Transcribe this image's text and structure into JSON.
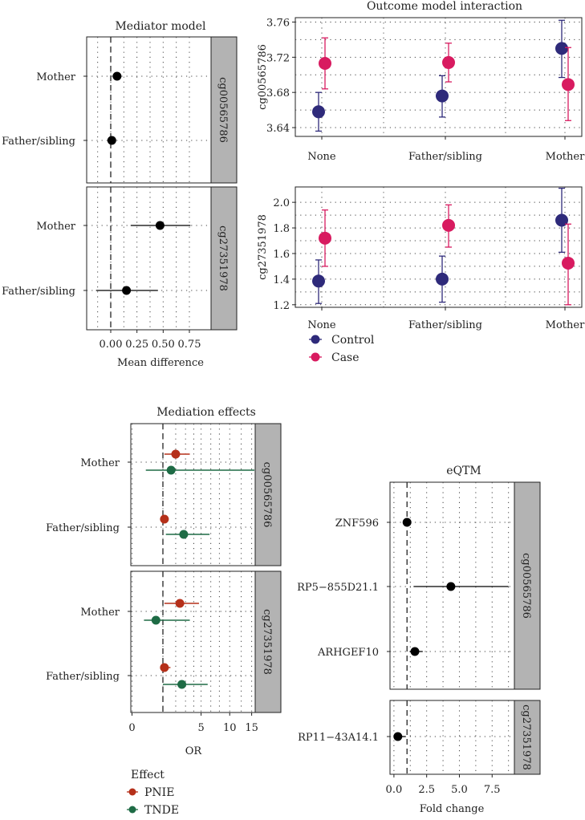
{
  "chart_data": [
    {
      "id": "mediator",
      "type": "scatter",
      "title": "Mediator model",
      "xlabel": "Mean difference",
      "xlim": [
        -0.2,
        0.8
      ],
      "xticks": [
        "0.00",
        "0.25",
        "0.50",
        "0.75"
      ],
      "xtick_values": [
        0,
        0.25,
        0.5,
        0.75
      ],
      "categories": [
        "Mother",
        "Father/sibling"
      ],
      "panels": [
        {
          "strip": "cg00565786",
          "points": [
            {
              "cat": "Mother",
              "x": 0.06,
              "lo": 0.06,
              "hi": 0.06
            },
            {
              "cat": "Father/sibling",
              "x": 0.01,
              "lo": 0.01,
              "hi": 0.01
            }
          ]
        },
        {
          "strip": "cg27351978",
          "points": [
            {
              "cat": "Mother",
              "x": 0.47,
              "lo": 0.19,
              "hi": 0.76
            },
            {
              "cat": "Father/sibling",
              "x": 0.15,
              "lo": -0.14,
              "hi": 0.45
            }
          ]
        }
      ]
    },
    {
      "id": "interaction",
      "type": "scatter",
      "title": "Outcome model interaction",
      "categories": [
        "None",
        "Father/sibling",
        "Mother"
      ],
      "legend": [
        "Control",
        "Case"
      ],
      "legend_colors": [
        "#2E2A7A",
        "#D81B60"
      ],
      "panels": [
        {
          "ylabel": "cg00565786",
          "ylim": [
            3.63,
            3.765
          ],
          "yticks": [
            "3.64",
            "3.68",
            "3.72",
            "3.76"
          ],
          "ytick_values": [
            3.64,
            3.68,
            3.72,
            3.76
          ],
          "series": [
            {
              "name": "Control",
              "values": [
                3.658,
                3.676,
                3.73
              ],
              "lo": [
                3.636,
                3.652,
                3.697
              ],
              "hi": [
                3.68,
                3.699,
                3.762
              ]
            },
            {
              "name": "Case",
              "values": [
                3.713,
                3.714,
                3.689
              ],
              "lo": [
                3.684,
                3.692,
                3.648
              ],
              "hi": [
                3.742,
                3.736,
                3.731
              ]
            }
          ]
        },
        {
          "ylabel": "cg27351978",
          "ylim": [
            1.18,
            2.12
          ],
          "yticks": [
            "1.2",
            "1.4",
            "1.6",
            "1.8",
            "2.0"
          ],
          "ytick_values": [
            1.2,
            1.4,
            1.6,
            1.8,
            2.0
          ],
          "series": [
            {
              "name": "Control",
              "values": [
                1.385,
                1.4,
                1.86
              ],
              "lo": [
                1.21,
                1.22,
                1.61
              ],
              "hi": [
                1.55,
                1.58,
                2.11
              ]
            },
            {
              "name": "Case",
              "values": [
                1.72,
                1.82,
                1.525
              ],
              "lo": [
                1.5,
                1.65,
                1.2
              ],
              "hi": [
                1.94,
                1.98,
                1.83
              ]
            }
          ]
        }
      ]
    },
    {
      "id": "mediation",
      "type": "scatter",
      "title": "Mediation effects",
      "xlabel": "OR",
      "x_scale": "sqrt",
      "xlim": [
        0,
        16
      ],
      "xticks": [
        "0",
        "5",
        "10",
        "15"
      ],
      "xtick_values": [
        0,
        5,
        10,
        15
      ],
      "categories": [
        "Mother",
        "Father/sibling"
      ],
      "legend_title": "Effect",
      "legend": [
        "PNIE",
        "TNDE"
      ],
      "legend_colors": [
        "#B5301A",
        "#1E6B45"
      ],
      "panels": [
        {
          "strip": "cg00565786",
          "points": [
            {
              "cat": "Mother",
              "series": "PNIE",
              "x": 2.0,
              "lo": 1.1,
              "hi": 3.5
            },
            {
              "cat": "Mother",
              "series": "TNDE",
              "x": 1.6,
              "lo": 0.2,
              "hi": 16
            },
            {
              "cat": "Father/sibling",
              "series": "PNIE",
              "x": 1.1,
              "lo": 1.0,
              "hi": 1.35
            },
            {
              "cat": "Father/sibling",
              "series": "TNDE",
              "x": 2.8,
              "lo": 1.2,
              "hi": 6.3
            }
          ]
        },
        {
          "strip": "cg27351978",
          "points": [
            {
              "cat": "Mother",
              "series": "PNIE",
              "x": 2.4,
              "lo": 1.1,
              "hi": 4.7
            },
            {
              "cat": "Mother",
              "series": "TNDE",
              "x": 0.6,
              "lo": 0.15,
              "hi": 3.5
            },
            {
              "cat": "Father/sibling",
              "series": "PNIE",
              "x": 1.1,
              "lo": 0.9,
              "hi": 1.55
            },
            {
              "cat": "Father/sibling",
              "series": "TNDE",
              "x": 2.6,
              "lo": 1.0,
              "hi": 6.0
            }
          ]
        }
      ]
    },
    {
      "id": "eqtm",
      "type": "scatter",
      "title": "eQTM",
      "xlabel": "Fold change",
      "xlim": [
        -0.3,
        9.2
      ],
      "xticks": [
        "0.0",
        "2.5",
        "5.0",
        "7.5"
      ],
      "xtick_values": [
        0,
        2.5,
        5,
        7.5
      ],
      "panels": [
        {
          "strip": "cg00565786",
          "categories": [
            "ZNF596",
            "RP5−855D21.1",
            "ARHGEF10"
          ],
          "points": [
            {
              "cat": "ZNF596",
              "x": 1.0,
              "lo": 1.0,
              "hi": 1.0
            },
            {
              "cat": "RP5−855D21.1",
              "x": 4.35,
              "lo": 1.5,
              "hi": 8.75
            },
            {
              "cat": "ARHGEF10",
              "x": 1.6,
              "lo": 1.2,
              "hi": 2.2
            }
          ]
        },
        {
          "strip": "cg27351978",
          "categories": [
            "RP11−43A14.1"
          ],
          "points": [
            {
              "cat": "RP11−43A14.1",
              "x": 0.3,
              "lo": 0.3,
              "hi": 0.9
            }
          ]
        }
      ]
    }
  ]
}
